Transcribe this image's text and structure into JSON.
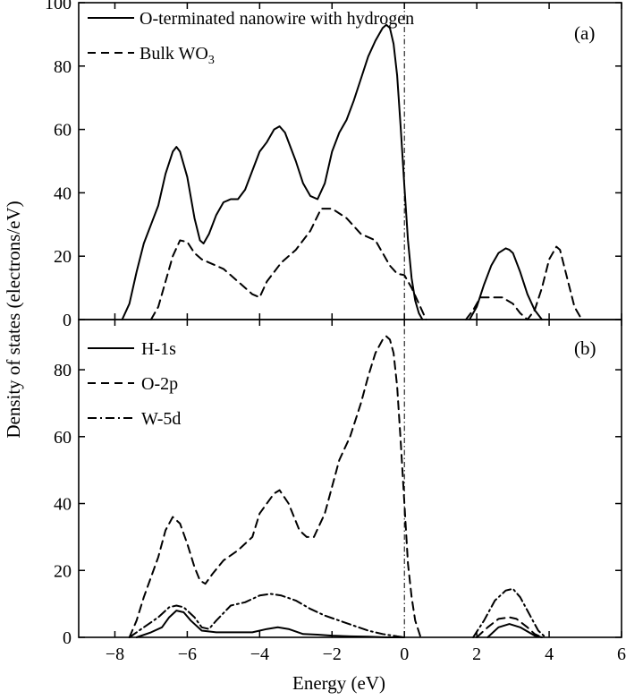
{
  "chart_data": [
    {
      "panel_label": "(a)",
      "type": "line",
      "xlim": [
        -9,
        6
      ],
      "ylim": [
        0,
        100
      ],
      "yticks": [
        0,
        20,
        40,
        60,
        80,
        100
      ],
      "xticks": [
        -8,
        -6,
        -4,
        -2,
        0,
        2,
        4,
        6
      ],
      "fermi_level_x": 0,
      "legend": {
        "placement": "top-left"
      },
      "series": [
        {
          "name": "O-terminated nanowire with hydrogen",
          "dash": "solid",
          "segments": [
            [
              [
                -7.8,
                0
              ],
              [
                -7.6,
                5
              ],
              [
                -7.4,
                15
              ],
              [
                -7.2,
                24
              ],
              [
                -7,
                30
              ],
              [
                -6.8,
                36
              ],
              [
                -6.6,
                46
              ],
              [
                -6.4,
                53
              ],
              [
                -6.3,
                54.5
              ],
              [
                -6.2,
                53
              ],
              [
                -6.0,
                45
              ],
              [
                -5.8,
                32
              ],
              [
                -5.65,
                25
              ],
              [
                -5.55,
                24
              ],
              [
                -5.4,
                27
              ],
              [
                -5.2,
                33
              ],
              [
                -5.0,
                37
              ],
              [
                -4.8,
                38
              ],
              [
                -4.6,
                38
              ],
              [
                -4.4,
                41
              ],
              [
                -4.2,
                47
              ],
              [
                -4.0,
                53
              ],
              [
                -3.8,
                56
              ],
              [
                -3.6,
                60
              ],
              [
                -3.45,
                61
              ],
              [
                -3.3,
                59
              ],
              [
                -3.0,
                50
              ],
              [
                -2.8,
                43
              ],
              [
                -2.6,
                39
              ],
              [
                -2.4,
                38
              ],
              [
                -2.2,
                43
              ],
              [
                -2.0,
                53
              ],
              [
                -1.8,
                59
              ],
              [
                -1.6,
                63
              ],
              [
                -1.4,
                69
              ],
              [
                -1.2,
                76
              ],
              [
                -1.0,
                83
              ],
              [
                -0.8,
                88
              ],
              [
                -0.6,
                92
              ],
              [
                -0.5,
                93
              ],
              [
                -0.4,
                92
              ],
              [
                -0.3,
                87
              ],
              [
                -0.2,
                77
              ],
              [
                -0.1,
                60
              ],
              [
                0.0,
                42
              ],
              [
                0.1,
                25
              ],
              [
                0.2,
                13
              ],
              [
                0.3,
                6
              ],
              [
                0.4,
                2
              ],
              [
                0.5,
                0
              ]
            ],
            [
              [
                1.8,
                0
              ],
              [
                2.0,
                4
              ],
              [
                2.2,
                11
              ],
              [
                2.4,
                17
              ],
              [
                2.6,
                21
              ],
              [
                2.8,
                22.5
              ],
              [
                2.9,
                22
              ],
              [
                3.0,
                21
              ],
              [
                3.2,
                15
              ],
              [
                3.4,
                8
              ],
              [
                3.6,
                3
              ],
              [
                3.8,
                0
              ]
            ]
          ]
        },
        {
          "name": "Bulk WO3",
          "dash": "dashed",
          "segments": [
            [
              [
                -7.0,
                0
              ],
              [
                -6.8,
                4
              ],
              [
                -6.6,
                12
              ],
              [
                -6.4,
                20
              ],
              [
                -6.2,
                25
              ],
              [
                -6.0,
                24.5
              ],
              [
                -5.8,
                21
              ],
              [
                -5.6,
                19
              ],
              [
                -5.4,
                18
              ],
              [
                -5.0,
                16
              ],
              [
                -4.6,
                12
              ],
              [
                -4.2,
                8
              ],
              [
                -4.0,
                7
              ],
              [
                -3.8,
                12
              ],
              [
                -3.4,
                18
              ],
              [
                -3.0,
                22
              ],
              [
                -2.6,
                28
              ],
              [
                -2.3,
                35
              ],
              [
                -2.0,
                35
              ],
              [
                -1.6,
                32
              ],
              [
                -1.2,
                27
              ],
              [
                -0.8,
                25
              ],
              [
                -0.6,
                21
              ],
              [
                -0.4,
                17
              ],
              [
                -0.2,
                14.5
              ],
              [
                0.0,
                14
              ],
              [
                0.2,
                10
              ],
              [
                0.4,
                5
              ],
              [
                0.6,
                0
              ]
            ],
            [
              [
                1.7,
                0
              ],
              [
                1.9,
                3
              ],
              [
                2.1,
                7
              ],
              [
                2.7,
                7
              ],
              [
                3.0,
                5
              ],
              [
                3.2,
                2
              ],
              [
                3.4,
                0
              ],
              [
                3.6,
                3
              ],
              [
                3.8,
                10
              ],
              [
                4.0,
                19
              ],
              [
                4.2,
                23
              ],
              [
                4.3,
                22
              ],
              [
                4.5,
                13
              ],
              [
                4.7,
                4
              ],
              [
                4.9,
                0
              ]
            ]
          ]
        }
      ]
    },
    {
      "panel_label": "(b)",
      "type": "line",
      "xlabel": "Energy (eV)",
      "xlim": [
        -9,
        6
      ],
      "ylim": [
        0,
        95
      ],
      "yticks": [
        0,
        20,
        40,
        60,
        80
      ],
      "xticks": [
        -8,
        -6,
        -4,
        -2,
        0,
        2,
        4,
        6
      ],
      "xtick_labels": [
        "−8",
        "−6",
        "−4",
        "−2",
        "0",
        "2",
        "4",
        "6"
      ],
      "fermi_level_x": 0,
      "legend": {
        "placement": "top-left"
      },
      "series": [
        {
          "name": "H-1s",
          "dash": "solid",
          "segments": [
            [
              [
                -7.4,
                0
              ],
              [
                -7.0,
                1.5
              ],
              [
                -6.7,
                3
              ],
              [
                -6.5,
                6
              ],
              [
                -6.3,
                8
              ],
              [
                -6.1,
                7.5
              ],
              [
                -5.9,
                5
              ],
              [
                -5.6,
                2
              ],
              [
                -5.2,
                1.5
              ],
              [
                -4.6,
                1.5
              ],
              [
                -4.2,
                1.5
              ],
              [
                -3.8,
                2.5
              ],
              [
                -3.5,
                3
              ],
              [
                -3.2,
                2.5
              ],
              [
                -2.8,
                1
              ],
              [
                -2.4,
                0.8
              ],
              [
                -2.0,
                0.5
              ],
              [
                -1.5,
                0.3
              ],
              [
                -1.0,
                0.2
              ],
              [
                -0.5,
                0
              ],
              [
                0,
                0
              ]
            ],
            [
              [
                2.3,
                0
              ],
              [
                2.6,
                3
              ],
              [
                2.9,
                4
              ],
              [
                3.2,
                3
              ],
              [
                3.6,
                0.5
              ],
              [
                3.8,
                0
              ]
            ]
          ]
        },
        {
          "name": "O-2p",
          "dash": "dashed",
          "segments": [
            [
              [
                -7.6,
                0
              ],
              [
                -7.4,
                5
              ],
              [
                -7.2,
                12
              ],
              [
                -7.0,
                18
              ],
              [
                -6.8,
                24
              ],
              [
                -6.6,
                32
              ],
              [
                -6.4,
                36
              ],
              [
                -6.2,
                34
              ],
              [
                -6.0,
                28
              ],
              [
                -5.8,
                21
              ],
              [
                -5.65,
                17
              ],
              [
                -5.5,
                16
              ],
              [
                -5.3,
                19
              ],
              [
                -5.0,
                23
              ],
              [
                -4.6,
                26
              ],
              [
                -4.2,
                30
              ],
              [
                -4.0,
                37
              ],
              [
                -3.8,
                40
              ],
              [
                -3.6,
                43
              ],
              [
                -3.45,
                44
              ],
              [
                -3.2,
                40
              ],
              [
                -2.9,
                32
              ],
              [
                -2.7,
                30
              ],
              [
                -2.5,
                30
              ],
              [
                -2.2,
                37
              ],
              [
                -2.0,
                45
              ],
              [
                -1.8,
                53
              ],
              [
                -1.5,
                60
              ],
              [
                -1.2,
                70
              ],
              [
                -1.0,
                78
              ],
              [
                -0.8,
                85
              ],
              [
                -0.6,
                89
              ],
              [
                -0.5,
                90
              ],
              [
                -0.4,
                89
              ],
              [
                -0.3,
                85
              ],
              [
                -0.2,
                75
              ],
              [
                -0.1,
                58
              ],
              [
                0.0,
                40
              ],
              [
                0.1,
                22
              ],
              [
                0.2,
                12
              ],
              [
                0.3,
                5
              ],
              [
                0.45,
                0
              ]
            ],
            [
              [
                2.0,
                0
              ],
              [
                2.3,
                3
              ],
              [
                2.6,
                5.5
              ],
              [
                2.9,
                6
              ],
              [
                3.1,
                5.5
              ],
              [
                3.4,
                3
              ],
              [
                3.6,
                1
              ],
              [
                3.8,
                0
              ]
            ]
          ]
        },
        {
          "name": "W-5d",
          "dash": "dashdot",
          "segments": [
            [
              [
                -7.6,
                0
              ],
              [
                -7.2,
                3
              ],
              [
                -6.8,
                6
              ],
              [
                -6.5,
                9
              ],
              [
                -6.3,
                9.5
              ],
              [
                -6.1,
                9
              ],
              [
                -5.8,
                6
              ],
              [
                -5.6,
                3
              ],
              [
                -5.4,
                2.5
              ],
              [
                -5.2,
                5
              ],
              [
                -4.8,
                9.5
              ],
              [
                -4.4,
                10.5
              ],
              [
                -4.0,
                12.5
              ],
              [
                -3.7,
                13
              ],
              [
                -3.4,
                12.5
              ],
              [
                -3.0,
                11
              ],
              [
                -2.6,
                8.5
              ],
              [
                -2.2,
                6.5
              ],
              [
                -1.8,
                5
              ],
              [
                -1.4,
                3.5
              ],
              [
                -1.0,
                2
              ],
              [
                -0.6,
                1
              ],
              [
                -0.2,
                0.3
              ],
              [
                0,
                0
              ]
            ],
            [
              [
                1.9,
                0
              ],
              [
                2.2,
                5
              ],
              [
                2.5,
                11
              ],
              [
                2.8,
                14
              ],
              [
                3.0,
                14.5
              ],
              [
                3.2,
                12
              ],
              [
                3.5,
                6
              ],
              [
                3.7,
                2
              ],
              [
                3.9,
                0
              ]
            ]
          ]
        }
      ]
    }
  ],
  "shared": {
    "ylabel": "Density of states (electrons/eV)"
  },
  "colors": {
    "line": "#000000",
    "background": "#ffffff"
  }
}
